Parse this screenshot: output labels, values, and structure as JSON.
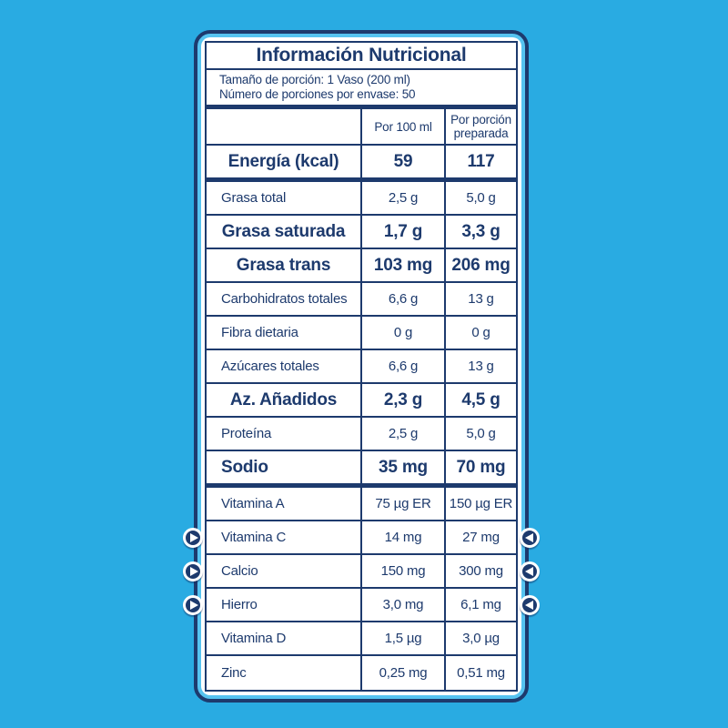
{
  "label": {
    "title": "Información Nutricional",
    "serving_info": [
      "Tamaño de porción: 1 Vaso (200 ml)",
      "Número de porciones por envase: 50"
    ],
    "columns": [
      "Por 100 ml",
      "Por porción preparada"
    ],
    "rows": [
      {
        "name": "Energía (kcal)",
        "per100": "59",
        "portion": "117",
        "bold": true,
        "center": true,
        "thick_after": true
      },
      {
        "name": "Grasa total",
        "per100": "2,5 g",
        "portion": "5,0 g"
      },
      {
        "name": "Grasa saturada",
        "per100": "1,7 g",
        "portion": "3,3 g",
        "bold": true,
        "center": true
      },
      {
        "name": "Grasa trans",
        "per100": "103 mg",
        "portion": "206 mg",
        "bold": true,
        "center": true
      },
      {
        "name": "Carbohidratos totales",
        "per100": "6,6 g",
        "portion": "13 g"
      },
      {
        "name": "Fibra dietaria",
        "per100": "0 g",
        "portion": "0 g"
      },
      {
        "name": "Azúcares totales",
        "per100": "6,6 g",
        "portion": "13 g"
      },
      {
        "name": "Az. Añadidos",
        "per100": "2,3 g",
        "portion": "4,5 g",
        "bold": true,
        "center": true
      },
      {
        "name": "Proteína",
        "per100": "2,5 g",
        "portion": "5,0 g"
      },
      {
        "name": "Sodio",
        "per100": "35 mg",
        "portion": "70 mg",
        "bold": true,
        "thick_after": true
      },
      {
        "name": "Vitamina A",
        "per100": "75 µg ER",
        "portion": "150 µg ER"
      },
      {
        "name": "Vitamina C",
        "per100": "14 mg",
        "portion": "27 mg",
        "arrows": true
      },
      {
        "name": "Calcio",
        "per100": "150 mg",
        "portion": "300 mg",
        "arrows": true
      },
      {
        "name": "Hierro",
        "per100": "3,0 mg",
        "portion": "6,1 mg",
        "arrows": true
      },
      {
        "name": "Vitamina D",
        "per100": "1,5 µg",
        "portion": "3,0 µg"
      },
      {
        "name": "Zinc",
        "per100": "0,25 mg",
        "portion": "0,51 mg"
      }
    ],
    "icons": {
      "left": "play-right-icon",
      "right": "play-left-icon"
    },
    "colors": {
      "background": "#29ABE2",
      "navy": "#1D3A6D",
      "accent_light": "#55C3F0",
      "card_fill": "#FFFFFF"
    }
  }
}
